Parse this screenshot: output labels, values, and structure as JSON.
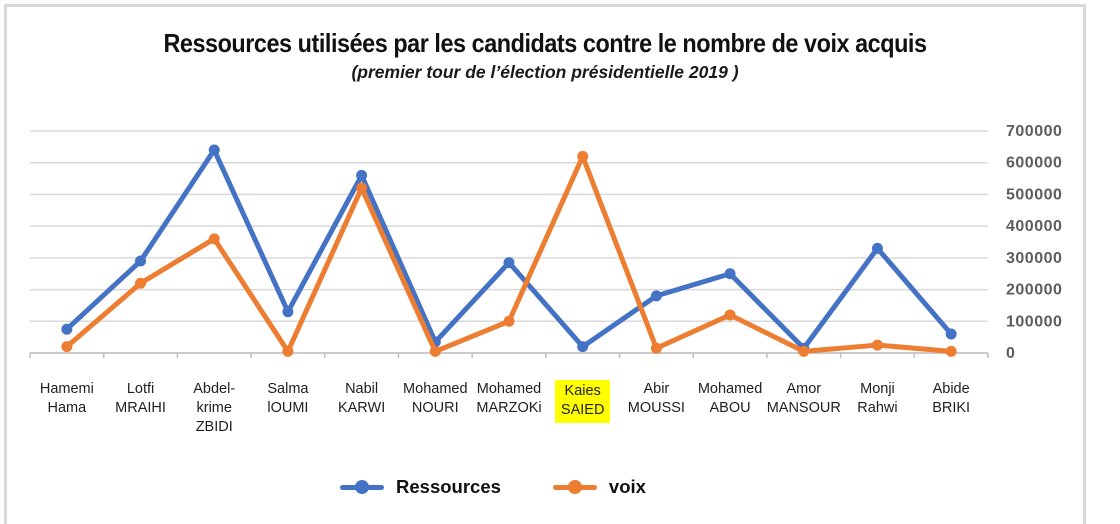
{
  "colors": {
    "ressources": "#4472C4",
    "voix": "#ED7D31",
    "gridline": "#D9D9D9",
    "axis": "#BFBFBF",
    "highlight": "#FFFF00",
    "y_label_text": "#5d5d5d"
  },
  "chart_data": {
    "type": "line",
    "title": "Ressources utilisées par les candidats contre le nombre de voix acquis",
    "subtitle": "(premier tour de l’élection présidentielle 2019 )",
    "categories": [
      [
        "Hamemi",
        "Hama"
      ],
      [
        "Lotfi",
        "MRAIHI"
      ],
      [
        "Abdel-",
        "krime",
        "ZBIDI"
      ],
      [
        "Salma",
        "lOUMI"
      ],
      [
        "Nabil",
        "KARWI"
      ],
      [
        "Mohamed",
        "NOURI"
      ],
      [
        "Mohamed",
        "MARZOKi"
      ],
      [
        "Kaies",
        "SAIED"
      ],
      [
        "Abir",
        "MOUSSI"
      ],
      [
        "Mohamed",
        "ABOU"
      ],
      [
        "Amor",
        "MANSOUR"
      ],
      [
        "Monji",
        "Rahwi"
      ],
      [
        "Abide",
        "BRIKI"
      ]
    ],
    "highlighted_category": "Kaies SAIED",
    "series": [
      {
        "name": "Ressources",
        "color": "#4472C4",
        "values": [
          75000,
          290000,
          640000,
          130000,
          560000,
          35000,
          285000,
          20000,
          180000,
          250000,
          15000,
          330000,
          60000
        ]
      },
      {
        "name": "voix",
        "color": "#ED7D31",
        "values": [
          20000,
          220000,
          360000,
          5000,
          520000,
          5000,
          100000,
          620000,
          15000,
          120000,
          5000,
          25000,
          5000
        ]
      }
    ],
    "ylim": [
      0,
      700000
    ],
    "y_ticks": [
      0,
      100000,
      200000,
      300000,
      400000,
      500000,
      600000,
      700000
    ],
    "y_tick_labels": [
      "0",
      "100000",
      "200000",
      "300000",
      "400000",
      "500000",
      "600000",
      "700000"
    ],
    "y_axis_side": "right",
    "grid": true,
    "legend_position": "bottom"
  }
}
